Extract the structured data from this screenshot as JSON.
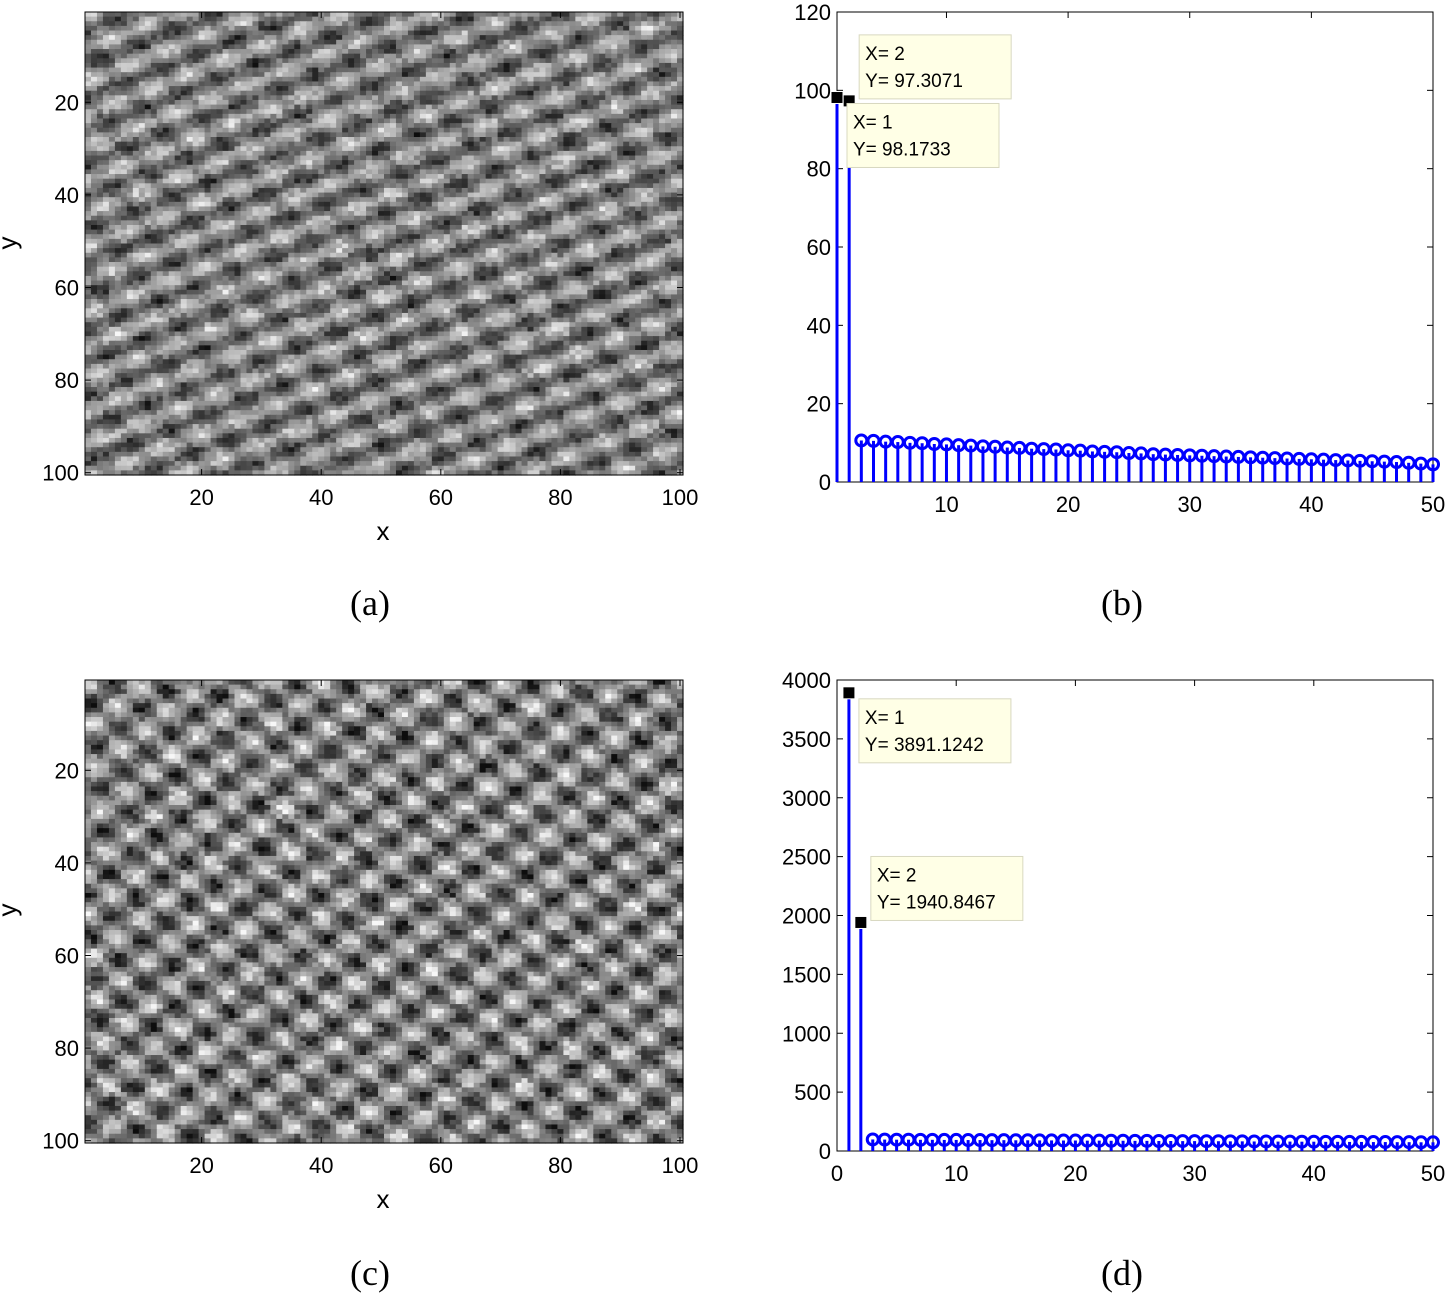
{
  "chart_data": [
    {
      "type": "heatmap",
      "panel_label": "(a)",
      "xlabel": "x",
      "ylabel": "y",
      "xticks": [
        20,
        40,
        60,
        80,
        100
      ],
      "yticks": [
        20,
        40,
        60,
        80,
        100
      ],
      "xlim": [
        0.5,
        100.5
      ],
      "ylim": [
        0.5,
        100.5
      ],
      "y_reversed": true,
      "grid_size": [
        100,
        100
      ],
      "colormap": "gray",
      "pattern": {
        "kx": 0.07,
        "ky": 0.14,
        "kx2": 0.12,
        "ky2": -0.08,
        "amp2": 0.55,
        "noise": 0.45,
        "seed": 7
      }
    },
    {
      "type": "stem",
      "panel_label": "(b)",
      "x": [
        1,
        2,
        3,
        4,
        5,
        6,
        7,
        8,
        9,
        10,
        11,
        12,
        13,
        14,
        15,
        16,
        17,
        18,
        19,
        20,
        21,
        22,
        23,
        24,
        25,
        26,
        27,
        28,
        29,
        30,
        31,
        32,
        33,
        34,
        35,
        36,
        37,
        38,
        39,
        40,
        41,
        42,
        43,
        44,
        45,
        46,
        47,
        48,
        49,
        50
      ],
      "values": [
        98.1733,
        97.3071,
        10.6,
        10.5,
        10.3,
        10.2,
        10.0,
        9.9,
        9.7,
        9.6,
        9.4,
        9.3,
        9.1,
        9.0,
        8.8,
        8.7,
        8.5,
        8.4,
        8.3,
        8.1,
        8.0,
        7.8,
        7.7,
        7.6,
        7.4,
        7.3,
        7.1,
        7.0,
        6.9,
        6.8,
        6.7,
        6.6,
        6.5,
        6.4,
        6.3,
        6.2,
        6.1,
        6.0,
        5.9,
        5.8,
        5.7,
        5.6,
        5.5,
        5.4,
        5.3,
        5.2,
        5.1,
        4.9,
        4.7,
        4.5
      ],
      "xlim": [
        1,
        50
      ],
      "ylim": [
        0,
        120
      ],
      "xticks": [
        10,
        20,
        30,
        40,
        50
      ],
      "yticks": [
        0,
        20,
        40,
        60,
        80,
        100,
        120
      ],
      "color": "#0000ff",
      "datatips": [
        {
          "label_x": "X= 2",
          "label_y": "Y= 97.3071",
          "x": 2,
          "y": 97.3071,
          "placement": "above-right"
        },
        {
          "label_x": "X= 1",
          "label_y": "Y= 98.1733",
          "x": 1,
          "y": 98.1733,
          "placement": "below-right"
        }
      ]
    },
    {
      "type": "heatmap",
      "panel_label": "(c)",
      "xlabel": "x",
      "ylabel": "y",
      "xticks": [
        20,
        40,
        60,
        80,
        100
      ],
      "yticks": [
        20,
        40,
        60,
        80,
        100
      ],
      "xlim": [
        0.5,
        100.5
      ],
      "ylim": [
        0.5,
        100.5
      ],
      "y_reversed": true,
      "grid_size": [
        100,
        100
      ],
      "colormap": "gray",
      "pattern": {
        "kx": 0.1,
        "ky": 0.1,
        "kx2": 0.13,
        "ky2": -0.12,
        "amp2": 0.9,
        "noise": 0.5,
        "seed": 13
      }
    },
    {
      "type": "stem",
      "panel_label": "(d)",
      "x": [
        1,
        2,
        3,
        4,
        5,
        6,
        7,
        8,
        9,
        10,
        11,
        12,
        13,
        14,
        15,
        16,
        17,
        18,
        19,
        20,
        21,
        22,
        23,
        24,
        25,
        26,
        27,
        28,
        29,
        30,
        31,
        32,
        33,
        34,
        35,
        36,
        37,
        38,
        39,
        40,
        41,
        42,
        43,
        44,
        45,
        46,
        47,
        48,
        49,
        50
      ],
      "values": [
        3891.1242,
        1940.8467,
        98,
        97,
        96,
        96,
        95,
        95,
        94,
        94,
        93,
        93,
        92,
        92,
        91,
        91,
        90,
        90,
        89,
        89,
        88,
        88,
        87,
        87,
        86,
        86,
        85,
        85,
        84,
        84,
        83,
        83,
        82,
        82,
        81,
        81,
        80,
        80,
        79,
        79,
        78,
        78,
        77,
        77,
        76,
        76,
        75,
        75,
        74,
        74
      ],
      "xlim": [
        0,
        50
      ],
      "ylim": [
        0,
        4000
      ],
      "xticks": [
        0,
        10,
        20,
        30,
        40,
        50
      ],
      "yticks": [
        0,
        500,
        1000,
        1500,
        2000,
        2500,
        3000,
        3500,
        4000
      ],
      "color": "#0000ff",
      "datatips": [
        {
          "label_x": "X= 1",
          "label_y": "Y= 3891.1242",
          "x": 1,
          "y": 3891.1242,
          "placement": "below-right"
        },
        {
          "label_x": "X= 2",
          "label_y": "Y= 1940.8467",
          "x": 2,
          "y": 1940.8467,
          "placement": "above-right"
        }
      ]
    }
  ]
}
